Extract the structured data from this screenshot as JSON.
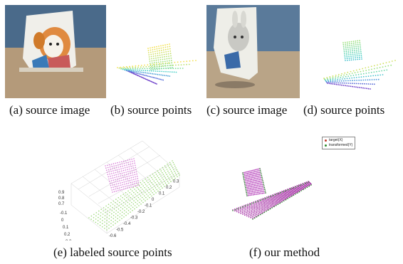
{
  "captions": {
    "a": "(a) source image",
    "b": "(b) source points",
    "c": "(c) source image",
    "d": "(d) source points",
    "e": "(e) labeled source points",
    "f": "(f) our method"
  },
  "plot_e": {
    "z_ticks": [
      "0.9",
      "0.8",
      "0.7"
    ],
    "y_ticks": [
      "-0.1",
      "0",
      "0.1",
      "0.2",
      "0.3"
    ],
    "x_ticks": [
      "-0.6",
      "-0.5",
      "-0.4",
      "-0.3",
      "-0.2",
      "-0.1",
      "0",
      "0.1",
      "0.2",
      "0.3"
    ]
  },
  "plot_f": {
    "legend": [
      {
        "label": "target(X)",
        "color": "#c0392b"
      },
      {
        "label": "transformed(Y)",
        "color": "#2e8b2e"
      }
    ]
  },
  "colors": {
    "magenta": "#b23cb8",
    "green": "#3aa63a",
    "light_green": "#a8e08a",
    "pink": "#e080e0"
  }
}
